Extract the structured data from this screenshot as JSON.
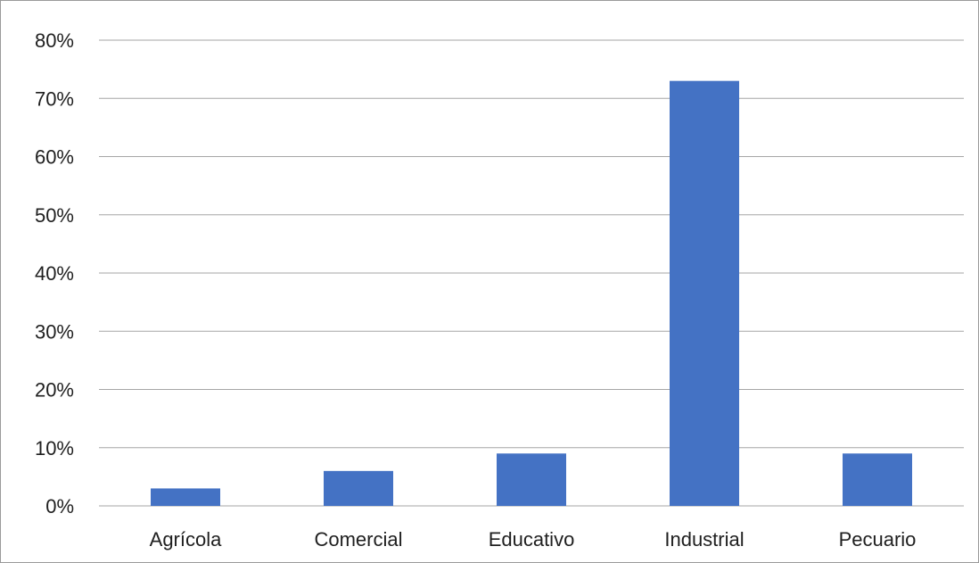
{
  "chart_data": {
    "type": "bar",
    "categories": [
      "Agrícola",
      "Comercial",
      "Educativo",
      "Industrial",
      "Pecuario"
    ],
    "values": [
      0.03,
      0.06,
      0.09,
      0.73,
      0.09
    ],
    "ylim": [
      0,
      0.8
    ],
    "y_ticks": [
      0,
      0.1,
      0.2,
      0.3,
      0.4,
      0.5,
      0.6,
      0.7,
      0.8
    ],
    "y_tick_labels": [
      "0%",
      "10%",
      "20%",
      "30%",
      "40%",
      "50%",
      "60%",
      "70%",
      "80%"
    ],
    "grid": true,
    "legend": false,
    "bar_color": "#4472c4",
    "gridline_color": "#a6a6a6",
    "title": "",
    "xlabel": "",
    "ylabel": ""
  }
}
